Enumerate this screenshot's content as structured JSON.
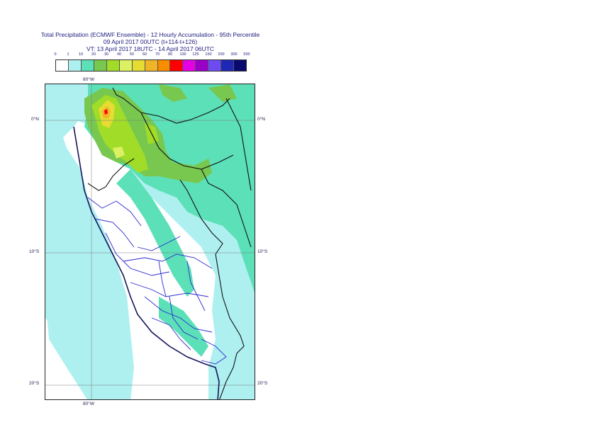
{
  "title": {
    "line1": "Total Precipitation (ECMWF Ensemble) - 12 Hourly Accumulation - 95th Percentile",
    "line2": "09 April 2017 00UTC (t+114-t+126)",
    "line3": "VT: 13 April 2017 18UTC - 14 April 2017 06UTC"
  },
  "legend": {
    "ticks": [
      "0",
      "1",
      "10",
      "20",
      "30",
      "40",
      "50",
      "60",
      "70",
      "80",
      "100",
      "125",
      "150",
      "200",
      "300",
      "500"
    ],
    "colors": [
      "#ffffff",
      "#aef0f0",
      "#5ce0b8",
      "#78c850",
      "#a0dc28",
      "#dcf064",
      "#e6dc32",
      "#f0b428",
      "#fa8c00",
      "#ff0000",
      "#e600e6",
      "#9b00c8",
      "#6e4bf0",
      "#1e28b4",
      "#0a0a6e"
    ]
  },
  "axes": {
    "lon_top": "80°W",
    "lon_bottom": "80°W",
    "lat_left": [
      "0°N",
      "10°S",
      "20°S"
    ],
    "lat_right": [
      "0°N",
      "10°S",
      "20°S"
    ]
  }
}
